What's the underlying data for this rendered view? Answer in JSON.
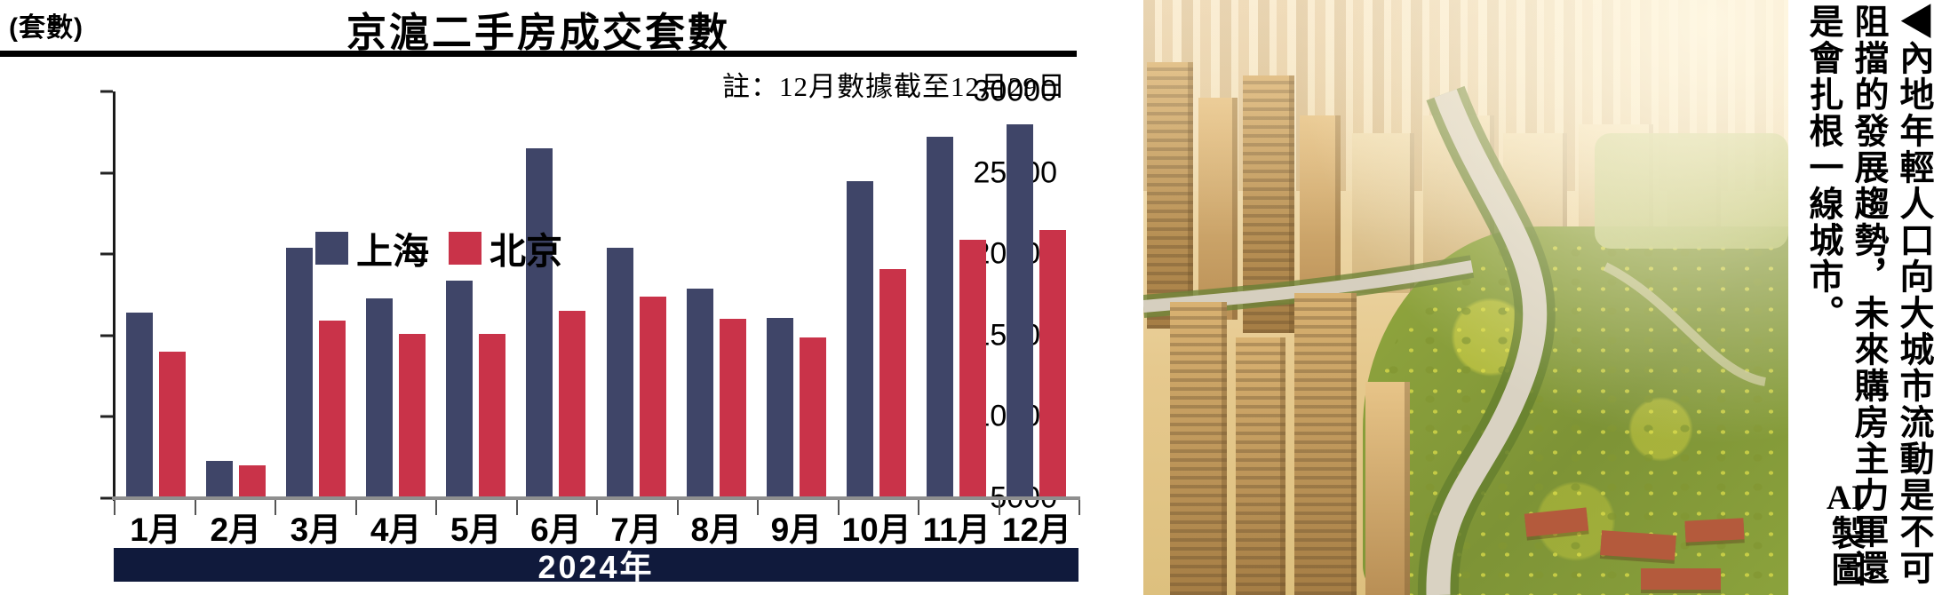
{
  "chart": {
    "colors": {
      "banner_bg": "#101a3c",
      "banner_text": "#ffffff",
      "axis_line": "#8f8f8f",
      "shanghai": "#3f4568",
      "beijing": "#c93349"
    }
  },
  "chart_data": {
    "type": "bar",
    "title": "京滬二手房成交套數",
    "ylabel": "(套數)",
    "note": "註：12月數據截至12月29日",
    "x_banner": "2024年",
    "categories": [
      "1月",
      "2月",
      "3月",
      "4月",
      "5月",
      "6月",
      "7月",
      "8月",
      "9月",
      "10月",
      "11月",
      "12月"
    ],
    "series": [
      {
        "name": "上海",
        "color": "#3f4568",
        "values": [
          16400,
          7300,
          20400,
          17300,
          18400,
          26500,
          20400,
          17900,
          16100,
          24500,
          27200,
          28000
        ]
      },
      {
        "name": "北京",
        "color": "#c93349",
        "values": [
          14000,
          7000,
          15900,
          15100,
          15100,
          16500,
          17400,
          16000,
          14900,
          19100,
          20900,
          21500
        ]
      }
    ],
    "ylim": [
      5000,
      30000
    ],
    "yticks": [
      5000,
      10000,
      15000,
      20000,
      25000,
      30000
    ],
    "grid": false,
    "legend_position": "top-left"
  },
  "photo": {
    "caption_full": "◀內地年輕人口向大城市流動是不可阻擋的發展趨勢，未來購房主力軍還是會扎根一線城市。",
    "credit": "AI製圖"
  }
}
